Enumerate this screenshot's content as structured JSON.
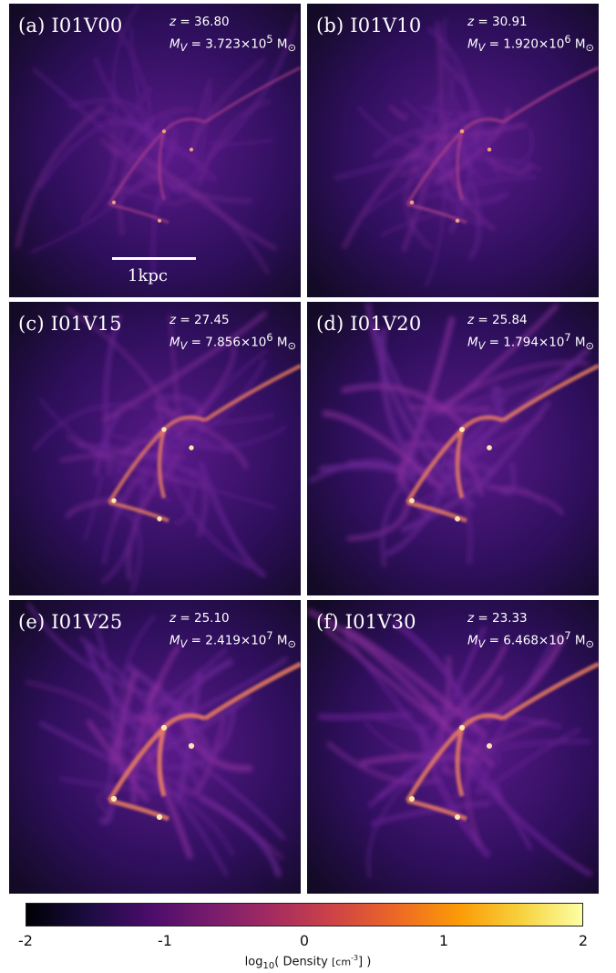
{
  "panels": [
    {
      "label": "(a) I01V00",
      "z_label": "z",
      "z_value": "= 36.80",
      "m_label": "M",
      "m_sub": "V",
      "m_value": "= 3.723×10",
      "m_exp": "5",
      "m_unit": "M",
      "brightness": 0.3
    },
    {
      "label": "(b) I01V10",
      "z_label": "z",
      "z_value": "= 30.91",
      "m_label": "M",
      "m_sub": "V",
      "m_value": "= 1.920×10",
      "m_exp": "6",
      "m_unit": "M",
      "brightness": 0.4
    },
    {
      "label": "(c) I01V15",
      "z_label": "z",
      "z_value": "= 27.45",
      "m_label": "M",
      "m_sub": "V",
      "m_value": "= 7.856×10",
      "m_exp": "6",
      "m_unit": "M",
      "brightness": 0.6
    },
    {
      "label": "(d) I01V20",
      "z_label": "z",
      "z_value": "= 25.84",
      "m_label": "M",
      "m_sub": "V",
      "m_value": "= 1.794×10",
      "m_exp": "7",
      "m_unit": "M",
      "brightness": 0.7
    },
    {
      "label": "(e) I01V25",
      "z_label": "z",
      "z_value": "= 25.10",
      "m_label": "M",
      "m_sub": "V",
      "m_value": "= 2.419×10",
      "m_exp": "7",
      "m_unit": "M",
      "brightness": 0.8
    },
    {
      "label": "(f) I01V30",
      "z_label": "z",
      "z_value": "= 23.33",
      "m_label": "M",
      "m_sub": "V",
      "m_value": "= 6.468×10",
      "m_exp": "7",
      "m_unit": "M",
      "brightness": 0.75
    }
  ],
  "scale_bar": {
    "label": "1kpc"
  },
  "colorbar": {
    "ticks": [
      "-2",
      "-1",
      "0",
      "1",
      "2"
    ],
    "label_prefix": "log",
    "label_sub": "10",
    "label_mid": "( Density ",
    "label_unit": "[cm",
    "label_exp": "-3",
    "label_end": "] )",
    "colors": [
      "#000004",
      "#1b0c41",
      "#4a0c6b",
      "#781c6d",
      "#a52c60",
      "#cf4446",
      "#ed6925",
      "#fb9b06",
      "#f7d13d",
      "#fcffa4"
    ]
  }
}
